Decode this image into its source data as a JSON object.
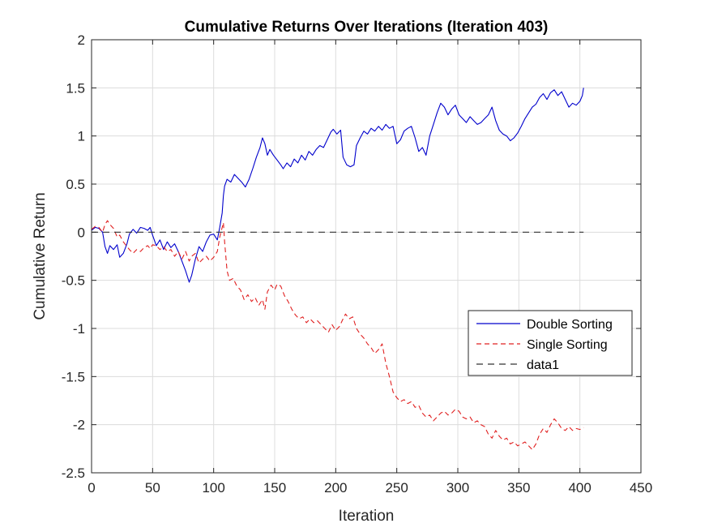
{
  "chart_data": {
    "type": "line",
    "title": "Cumulative Returns Over Iterations (Iteration 403)",
    "xlabel": "Iteration",
    "ylabel": "Cumulative Return",
    "xlim": [
      0,
      450
    ],
    "ylim": [
      -2.5,
      2
    ],
    "xticks": [
      0,
      50,
      100,
      150,
      200,
      250,
      300,
      350,
      400,
      450
    ],
    "yticks": [
      -2.5,
      -2,
      -1.5,
      -1,
      -0.5,
      0,
      0.5,
      1,
      1.5,
      2
    ],
    "grid": true,
    "legend_position": "right",
    "series": [
      {
        "name": "Double Sorting",
        "color": "#0000cc",
        "style": "solid",
        "points": [
          [
            0,
            0.02
          ],
          [
            3,
            0.05
          ],
          [
            6,
            0.04
          ],
          [
            9,
            0.0
          ],
          [
            11,
            -0.15
          ],
          [
            13,
            -0.22
          ],
          [
            15,
            -0.14
          ],
          [
            18,
            -0.18
          ],
          [
            21,
            -0.13
          ],
          [
            23,
            -0.26
          ],
          [
            26,
            -0.22
          ],
          [
            29,
            -0.12
          ],
          [
            31,
            -0.02
          ],
          [
            34,
            0.03
          ],
          [
            37,
            -0.01
          ],
          [
            40,
            0.05
          ],
          [
            43,
            0.04
          ],
          [
            46,
            0.02
          ],
          [
            48,
            0.05
          ],
          [
            50,
            -0.03
          ],
          [
            53,
            -0.14
          ],
          [
            56,
            -0.08
          ],
          [
            59,
            -0.18
          ],
          [
            62,
            -0.1
          ],
          [
            65,
            -0.16
          ],
          [
            68,
            -0.12
          ],
          [
            71,
            -0.2
          ],
          [
            74,
            -0.3
          ],
          [
            77,
            -0.4
          ],
          [
            80,
            -0.52
          ],
          [
            82,
            -0.45
          ],
          [
            85,
            -0.28
          ],
          [
            88,
            -0.15
          ],
          [
            91,
            -0.2
          ],
          [
            94,
            -0.1
          ],
          [
            97,
            -0.03
          ],
          [
            100,
            -0.02
          ],
          [
            103,
            -0.08
          ],
          [
            105,
            0.05
          ],
          [
            107,
            0.2
          ],
          [
            108,
            0.38
          ],
          [
            109,
            0.48
          ],
          [
            111,
            0.55
          ],
          [
            114,
            0.52
          ],
          [
            117,
            0.6
          ],
          [
            120,
            0.56
          ],
          [
            123,
            0.52
          ],
          [
            126,
            0.47
          ],
          [
            129,
            0.55
          ],
          [
            132,
            0.66
          ],
          [
            135,
            0.78
          ],
          [
            138,
            0.88
          ],
          [
            140,
            0.98
          ],
          [
            142,
            0.92
          ],
          [
            144,
            0.8
          ],
          [
            146,
            0.86
          ],
          [
            149,
            0.8
          ],
          [
            152,
            0.75
          ],
          [
            155,
            0.7
          ],
          [
            157,
            0.66
          ],
          [
            160,
            0.72
          ],
          [
            163,
            0.68
          ],
          [
            166,
            0.76
          ],
          [
            169,
            0.72
          ],
          [
            172,
            0.8
          ],
          [
            175,
            0.75
          ],
          [
            178,
            0.84
          ],
          [
            181,
            0.8
          ],
          [
            184,
            0.86
          ],
          [
            187,
            0.9
          ],
          [
            190,
            0.88
          ],
          [
            193,
            0.96
          ],
          [
            196,
            1.04
          ],
          [
            198,
            1.07
          ],
          [
            201,
            1.02
          ],
          [
            204,
            1.06
          ],
          [
            206,
            0.78
          ],
          [
            209,
            0.7
          ],
          [
            212,
            0.68
          ],
          [
            215,
            0.7
          ],
          [
            217,
            0.9
          ],
          [
            220,
            0.98
          ],
          [
            223,
            1.05
          ],
          [
            226,
            1.02
          ],
          [
            229,
            1.08
          ],
          [
            232,
            1.05
          ],
          [
            235,
            1.1
          ],
          [
            238,
            1.06
          ],
          [
            241,
            1.12
          ],
          [
            244,
            1.08
          ],
          [
            247,
            1.1
          ],
          [
            250,
            0.92
          ],
          [
            253,
            0.96
          ],
          [
            256,
            1.05
          ],
          [
            259,
            1.08
          ],
          [
            262,
            1.1
          ],
          [
            265,
            0.98
          ],
          [
            268,
            0.84
          ],
          [
            271,
            0.88
          ],
          [
            274,
            0.8
          ],
          [
            277,
            1.0
          ],
          [
            280,
            1.12
          ],
          [
            283,
            1.24
          ],
          [
            286,
            1.34
          ],
          [
            289,
            1.3
          ],
          [
            292,
            1.22
          ],
          [
            295,
            1.28
          ],
          [
            298,
            1.32
          ],
          [
            301,
            1.22
          ],
          [
            304,
            1.18
          ],
          [
            307,
            1.14
          ],
          [
            310,
            1.2
          ],
          [
            313,
            1.16
          ],
          [
            316,
            1.12
          ],
          [
            319,
            1.14
          ],
          [
            322,
            1.18
          ],
          [
            325,
            1.22
          ],
          [
            328,
            1.3
          ],
          [
            331,
            1.16
          ],
          [
            334,
            1.06
          ],
          [
            337,
            1.02
          ],
          [
            340,
            1.0
          ],
          [
            343,
            0.95
          ],
          [
            346,
            0.98
          ],
          [
            349,
            1.03
          ],
          [
            352,
            1.1
          ],
          [
            355,
            1.18
          ],
          [
            358,
            1.24
          ],
          [
            361,
            1.3
          ],
          [
            364,
            1.33
          ],
          [
            367,
            1.4
          ],
          [
            370,
            1.44
          ],
          [
            373,
            1.38
          ],
          [
            376,
            1.45
          ],
          [
            379,
            1.48
          ],
          [
            382,
            1.42
          ],
          [
            385,
            1.46
          ],
          [
            388,
            1.38
          ],
          [
            391,
            1.3
          ],
          [
            394,
            1.34
          ],
          [
            397,
            1.32
          ],
          [
            400,
            1.36
          ],
          [
            402,
            1.42
          ],
          [
            403,
            1.5
          ]
        ]
      },
      {
        "name": "Single Sorting",
        "color": "#e02020",
        "style": "dashed",
        "points": [
          [
            0,
            0.03
          ],
          [
            3,
            0.06
          ],
          [
            6,
            0.05
          ],
          [
            9,
            0.0
          ],
          [
            11,
            0.08
          ],
          [
            13,
            0.12
          ],
          [
            15,
            0.08
          ],
          [
            18,
            0.04
          ],
          [
            21,
            -0.05
          ],
          [
            23,
            -0.03
          ],
          [
            26,
            -0.1
          ],
          [
            29,
            -0.15
          ],
          [
            31,
            -0.18
          ],
          [
            34,
            -0.22
          ],
          [
            37,
            -0.18
          ],
          [
            40,
            -0.2
          ],
          [
            43,
            -0.16
          ],
          [
            46,
            -0.14
          ],
          [
            48,
            -0.17
          ],
          [
            50,
            -0.13
          ],
          [
            53,
            -0.14
          ],
          [
            56,
            -0.18
          ],
          [
            59,
            -0.15
          ],
          [
            62,
            -0.2
          ],
          [
            65,
            -0.18
          ],
          [
            68,
            -0.25
          ],
          [
            71,
            -0.2
          ],
          [
            74,
            -0.28
          ],
          [
            77,
            -0.2
          ],
          [
            80,
            -0.3
          ],
          [
            82,
            -0.25
          ],
          [
            85,
            -0.22
          ],
          [
            88,
            -0.32
          ],
          [
            91,
            -0.28
          ],
          [
            94,
            -0.25
          ],
          [
            97,
            -0.3
          ],
          [
            100,
            -0.26
          ],
          [
            103,
            -0.2
          ],
          [
            105,
            -0.05
          ],
          [
            107,
            0.05
          ],
          [
            108,
            0.1
          ],
          [
            109,
            -0.1
          ],
          [
            111,
            -0.4
          ],
          [
            113,
            -0.5
          ],
          [
            116,
            -0.48
          ],
          [
            119,
            -0.56
          ],
          [
            122,
            -0.6
          ],
          [
            125,
            -0.7
          ],
          [
            128,
            -0.65
          ],
          [
            131,
            -0.72
          ],
          [
            134,
            -0.68
          ],
          [
            137,
            -0.76
          ],
          [
            140,
            -0.7
          ],
          [
            142,
            -0.8
          ],
          [
            144,
            -0.62
          ],
          [
            147,
            -0.55
          ],
          [
            150,
            -0.6
          ],
          [
            152,
            -0.54
          ],
          [
            155,
            -0.56
          ],
          [
            158,
            -0.66
          ],
          [
            161,
            -0.72
          ],
          [
            164,
            -0.8
          ],
          [
            167,
            -0.86
          ],
          [
            170,
            -0.9
          ],
          [
            173,
            -0.88
          ],
          [
            176,
            -0.94
          ],
          [
            179,
            -0.9
          ],
          [
            182,
            -0.94
          ],
          [
            185,
            -0.92
          ],
          [
            188,
            -0.96
          ],
          [
            191,
            -1.0
          ],
          [
            194,
            -1.04
          ],
          [
            197,
            -0.96
          ],
          [
            200,
            -1.02
          ],
          [
            203,
            -0.98
          ],
          [
            206,
            -0.9
          ],
          [
            208,
            -0.85
          ],
          [
            211,
            -0.9
          ],
          [
            214,
            -0.88
          ],
          [
            217,
            -1.0
          ],
          [
            220,
            -1.06
          ],
          [
            223,
            -1.1
          ],
          [
            226,
            -1.16
          ],
          [
            229,
            -1.2
          ],
          [
            232,
            -1.26
          ],
          [
            235,
            -1.22
          ],
          [
            238,
            -1.16
          ],
          [
            241,
            -1.36
          ],
          [
            244,
            -1.5
          ],
          [
            247,
            -1.66
          ],
          [
            250,
            -1.72
          ],
          [
            253,
            -1.76
          ],
          [
            256,
            -1.74
          ],
          [
            259,
            -1.78
          ],
          [
            262,
            -1.76
          ],
          [
            265,
            -1.82
          ],
          [
            268,
            -1.8
          ],
          [
            271,
            -1.88
          ],
          [
            274,
            -1.92
          ],
          [
            277,
            -1.9
          ],
          [
            280,
            -1.96
          ],
          [
            283,
            -1.92
          ],
          [
            286,
            -1.88
          ],
          [
            289,
            -1.86
          ],
          [
            292,
            -1.9
          ],
          [
            295,
            -1.88
          ],
          [
            298,
            -1.84
          ],
          [
            301,
            -1.86
          ],
          [
            304,
            -1.92
          ],
          [
            307,
            -1.94
          ],
          [
            310,
            -1.92
          ],
          [
            313,
            -1.98
          ],
          [
            316,
            -1.96
          ],
          [
            319,
            -2.0
          ],
          [
            322,
            -2.02
          ],
          [
            325,
            -2.1
          ],
          [
            328,
            -2.14
          ],
          [
            331,
            -2.06
          ],
          [
            334,
            -2.12
          ],
          [
            337,
            -2.16
          ],
          [
            340,
            -2.14
          ],
          [
            343,
            -2.2
          ],
          [
            346,
            -2.18
          ],
          [
            349,
            -2.22
          ],
          [
            352,
            -2.2
          ],
          [
            355,
            -2.18
          ],
          [
            358,
            -2.22
          ],
          [
            361,
            -2.26
          ],
          [
            364,
            -2.2
          ],
          [
            367,
            -2.1
          ],
          [
            370,
            -2.04
          ],
          [
            373,
            -2.08
          ],
          [
            376,
            -2.0
          ],
          [
            379,
            -1.94
          ],
          [
            382,
            -1.98
          ],
          [
            385,
            -2.04
          ],
          [
            388,
            -2.06
          ],
          [
            391,
            -2.02
          ],
          [
            394,
            -2.06
          ],
          [
            397,
            -2.04
          ],
          [
            400,
            -2.05
          ],
          [
            403,
            -2.03
          ]
        ]
      },
      {
        "name": "data1",
        "color": "#333333",
        "style": "dashed",
        "points": [
          [
            0,
            0
          ],
          [
            403,
            0
          ]
        ]
      }
    ]
  }
}
